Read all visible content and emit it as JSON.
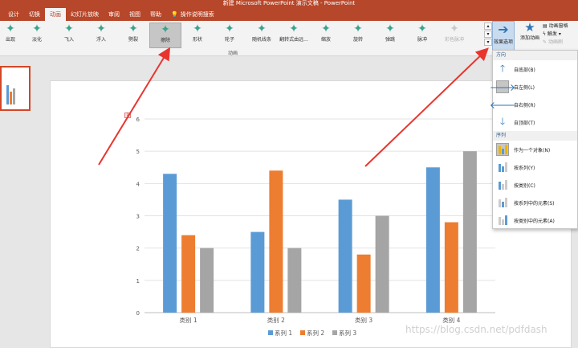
{
  "titlebar": {
    "text": "新建 Microsoft PowerPoint 演示文稿 - PowerPoint"
  },
  "menubar": {
    "tabs": [
      "设计",
      "切换",
      "动画",
      "幻灯片放映",
      "审阅",
      "视图",
      "帮助"
    ],
    "active_index": 2,
    "tell_me": "操作说明搜索"
  },
  "ribbon": {
    "animations": [
      {
        "label": "出现",
        "disabled": false,
        "selected": false
      },
      {
        "label": "淡化",
        "disabled": false,
        "selected": false
      },
      {
        "label": "飞入",
        "disabled": false,
        "selected": false
      },
      {
        "label": "浮入",
        "disabled": false,
        "selected": false
      },
      {
        "label": "劈裂",
        "disabled": false,
        "selected": false
      },
      {
        "label": "擦除",
        "disabled": false,
        "selected": true
      },
      {
        "label": "形状",
        "disabled": false,
        "selected": false
      },
      {
        "label": "轮子",
        "disabled": false,
        "selected": false
      },
      {
        "label": "随机线条",
        "disabled": false,
        "selected": false
      },
      {
        "label": "翻转式由远...",
        "disabled": false,
        "selected": false
      },
      {
        "label": "缩放",
        "disabled": false,
        "selected": false
      },
      {
        "label": "旋转",
        "disabled": false,
        "selected": false
      },
      {
        "label": "弹跳",
        "disabled": false,
        "selected": false
      },
      {
        "label": "脉冲",
        "disabled": false,
        "selected": false
      },
      {
        "label": "彩色脉冲",
        "disabled": true,
        "selected": false
      }
    ],
    "group_label": "动画",
    "effect_options": "效果选项",
    "add_animation": "添加动画",
    "animation_pane": "动画窗格",
    "trigger": "触发",
    "animation_painter": "动画刷"
  },
  "dropdown": {
    "direction_header": "方向",
    "directions": [
      {
        "label": "自底部(B)",
        "icon": "arrow-up-icon",
        "glyph": "🡑"
      },
      {
        "label": "自左侧(L)",
        "icon": "arrow-right-icon",
        "glyph": "🡒",
        "selected": true
      },
      {
        "label": "自右侧(R)",
        "icon": "arrow-left-icon",
        "glyph": "🡐"
      },
      {
        "label": "自顶部(T)",
        "icon": "arrow-down-icon",
        "glyph": "🡓"
      }
    ],
    "sequence_header": "序列",
    "sequences": [
      {
        "label": "作为一个对象(N)",
        "selected": true
      },
      {
        "label": "按系列(Y)"
      },
      {
        "label": "按类别(C)"
      },
      {
        "label": "按系列中的元素(S)"
      },
      {
        "label": "按类别中的元素(A)"
      }
    ]
  },
  "chart_data": {
    "type": "bar",
    "categories": [
      "类别 1",
      "类别 2",
      "类别 3",
      "类别 4"
    ],
    "series": [
      {
        "name": "系列 1",
        "values": [
          4.3,
          2.5,
          3.5,
          4.5
        ],
        "color": "#5b9bd5"
      },
      {
        "name": "系列 2",
        "values": [
          2.4,
          4.4,
          1.8,
          2.8
        ],
        "color": "#ed7d31"
      },
      {
        "name": "系列 3",
        "values": [
          2,
          2,
          3,
          5
        ],
        "color": "#a5a5a5"
      }
    ],
    "yticks": [
      "0",
      "1",
      "2",
      "3",
      "4",
      "5",
      "6"
    ],
    "ylim": [
      0,
      6
    ],
    "grid": true,
    "legend": "bottom"
  },
  "watermark": "https://blog.csdn.net/pdfdash"
}
